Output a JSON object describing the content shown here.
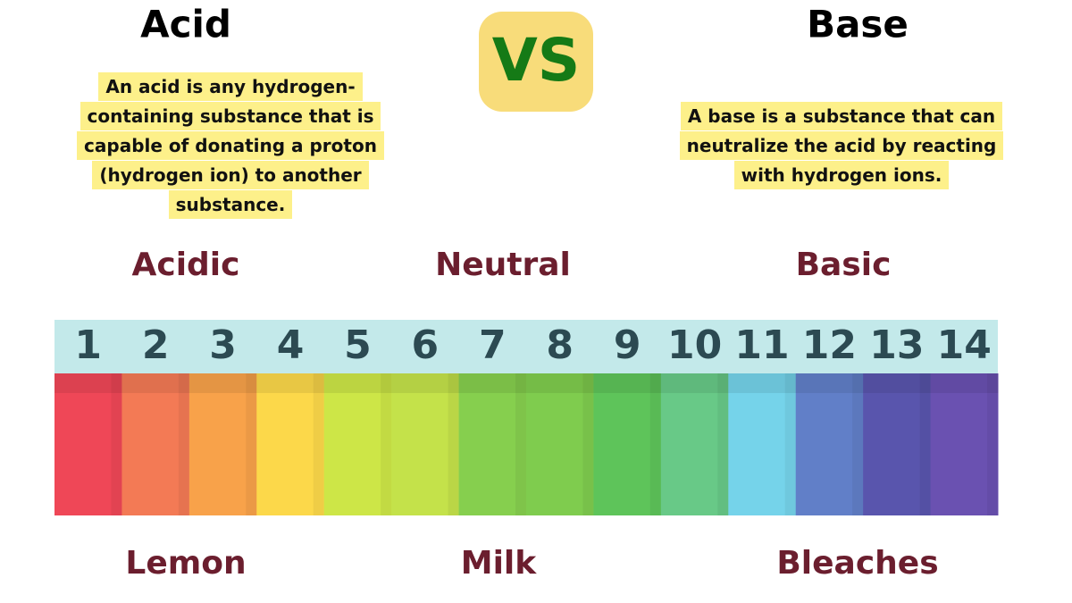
{
  "acid": {
    "title": "Acid",
    "description": [
      "An acid is any hydrogen-",
      "containing substance that is",
      "capable of donating a proton",
      "(hydrogen ion) to another",
      "substance."
    ]
  },
  "vs": "VS",
  "base": {
    "title": "Base",
    "description": [
      "A base is a substance that can",
      "neutralize the acid by reacting",
      "with hydrogen ions."
    ]
  },
  "scale_labels": [
    "Acidic",
    "Neutral",
    "Basic"
  ],
  "ph_scale": [
    {
      "value": 1,
      "color": "#ef4757"
    },
    {
      "value": 2,
      "color": "#f37a55"
    },
    {
      "value": 3,
      "color": "#f8a24a"
    },
    {
      "value": 4,
      "color": "#fcd84a"
    },
    {
      "value": 5,
      "color": "#cde647"
    },
    {
      "value": 6,
      "color": "#c4e24a"
    },
    {
      "value": 7,
      "color": "#86cf4e"
    },
    {
      "value": 8,
      "color": "#7fcc4e"
    },
    {
      "value": 9,
      "color": "#5ec45a"
    },
    {
      "value": 10,
      "color": "#68c987"
    },
    {
      "value": 11,
      "color": "#75d3ea"
    },
    {
      "value": 12,
      "color": "#617fc8"
    },
    {
      "value": 13,
      "color": "#5955ad"
    },
    {
      "value": 14,
      "color": "#6a51b1"
    }
  ],
  "examples": [
    "Lemon",
    "Milk",
    "Bleaches"
  ]
}
